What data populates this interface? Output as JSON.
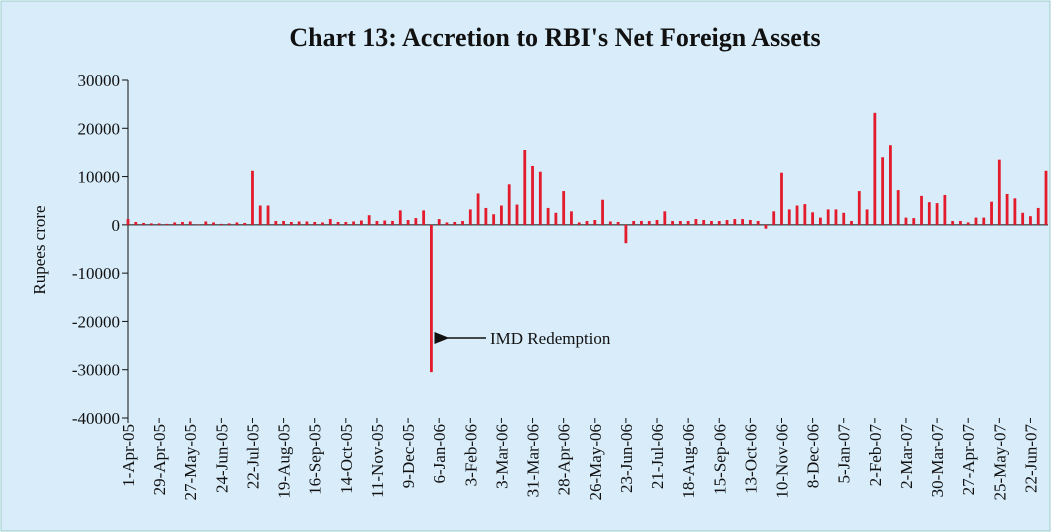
{
  "chart_data": {
    "type": "bar",
    "title": "Chart 13: Accretion to RBI's Net Foreign Assets",
    "y_label": "Rupees crore",
    "annotation": "IMD Redemption",
    "color": "#e31b2c",
    "ylim": [
      -40000,
      30000
    ],
    "yticks": [
      -40000,
      -30000,
      -20000,
      -10000,
      0,
      10000,
      20000,
      30000
    ],
    "categories": [
      "1-Apr-05",
      null,
      null,
      null,
      "29-Apr-05",
      null,
      null,
      null,
      "27-May-05",
      null,
      null,
      null,
      "24-Jun-05",
      null,
      null,
      null,
      "22-Jul-05",
      null,
      null,
      null,
      "19-Aug-05",
      null,
      null,
      null,
      "16-Sep-05",
      null,
      null,
      null,
      "14-Oct-05",
      null,
      null,
      null,
      "11-Nov-05",
      null,
      null,
      null,
      "9-Dec-05",
      null,
      null,
      null,
      "6-Jan-06",
      null,
      null,
      null,
      "3-Feb-06",
      null,
      null,
      null,
      "3-Mar-06",
      null,
      null,
      null,
      "31-Mar-06",
      null,
      null,
      null,
      "28-Apr-06",
      null,
      null,
      null,
      "26-May-06",
      null,
      null,
      null,
      "23-Jun-06",
      null,
      null,
      null,
      "21-Jul-06",
      null,
      null,
      null,
      "18-Aug-06",
      null,
      null,
      null,
      "15-Sep-06",
      null,
      null,
      null,
      "13-Oct-06",
      null,
      null,
      null,
      "10-Nov-06",
      null,
      null,
      null,
      "8-Dec-06",
      null,
      null,
      null,
      "5-Jan-07",
      null,
      null,
      null,
      "2-Feb-07",
      null,
      null,
      null,
      "2-Mar-07",
      null,
      null,
      null,
      "30-Mar-07",
      null,
      null,
      null,
      "27-Apr-07",
      null,
      null,
      null,
      "25-May-07",
      null,
      null,
      null,
      "22-Jun-07",
      null,
      null
    ],
    "values": [
      1200,
      600,
      400,
      300,
      300,
      200,
      500,
      600,
      700,
      100,
      700,
      500,
      200,
      300,
      500,
      400,
      11200,
      4000,
      4000,
      800,
      800,
      600,
      700,
      700,
      600,
      500,
      1200,
      600,
      600,
      700,
      900,
      2000,
      800,
      900,
      800,
      3000,
      1000,
      1400,
      3000,
      -30500,
      1200,
      500,
      600,
      800,
      3200,
      6500,
      3500,
      2200,
      4000,
      8400,
      4200,
      15500,
      12200,
      11000,
      3500,
      2500,
      7000,
      2800,
      500,
      800,
      1000,
      5200,
      700,
      600,
      -3800,
      800,
      800,
      800,
      1000,
      2800,
      800,
      800,
      800,
      1200,
      1000,
      800,
      800,
      1000,
      1200,
      1200,
      1000,
      800,
      -800,
      2800,
      10800,
      3200,
      4000,
      4300,
      2600,
      1500,
      3200,
      3200,
      2500,
      800,
      7000,
      3200,
      23200,
      14000,
      16500,
      7200,
      1500,
      1400,
      6000,
      4700,
      4500,
      6200,
      800,
      800,
      500,
      1500,
      1500,
      4800,
      13500,
      6400,
      5500,
      2500,
      1800,
      3500,
      11200
    ]
  }
}
